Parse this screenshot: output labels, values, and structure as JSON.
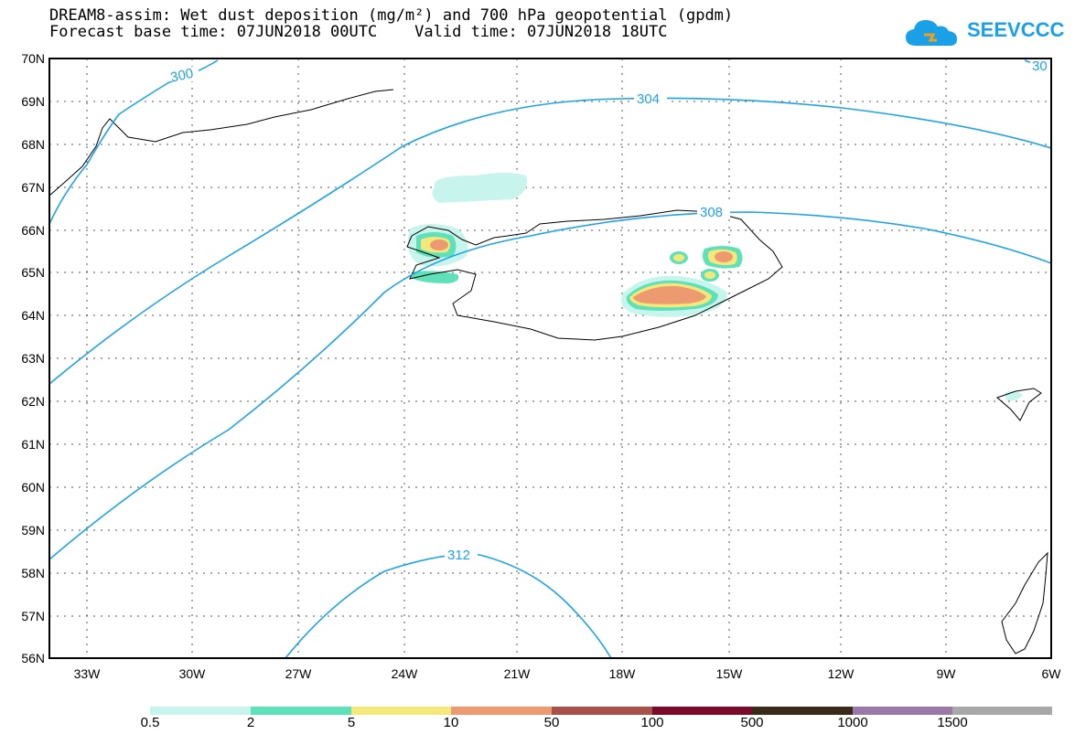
{
  "title": {
    "line1": "DREAM8-assim: Wet dust deposition (mg/m²) and 700 hPa geopotential (gpdm)",
    "line2": "Forecast base time: 07JUN2018 00UTC    Valid time: 07JUN2018 18UTC"
  },
  "logo": {
    "text": "SEEVCCC",
    "color": "#1aa0e6"
  },
  "map": {
    "lat_labels": [
      "70N",
      "69N",
      "68N",
      "67N",
      "66N",
      "65N",
      "64N",
      "63N",
      "62N",
      "61N",
      "60N",
      "59N",
      "58N",
      "57N",
      "56N"
    ],
    "lon_labels": [
      "33W",
      "30W",
      "27W",
      "24W",
      "21W",
      "18W",
      "15W",
      "12W",
      "9W",
      "6W"
    ],
    "contour_labels": [
      "300",
      "304",
      "308",
      "312",
      "30"
    ],
    "contour_color": "#1fa3e8",
    "grid": "dotted"
  },
  "colorbar": {
    "labels": [
      "0.5",
      "2",
      "5",
      "10",
      "50",
      "100",
      "500",
      "1000",
      "1500"
    ],
    "colors": [
      "#c8f4ee",
      "#5ee0b8",
      "#f4e87a",
      "#ee9a70",
      "#a6524a",
      "#7a0a2a",
      "#3a2a1a",
      "#9a78a8",
      "#a8a8a8"
    ]
  }
}
